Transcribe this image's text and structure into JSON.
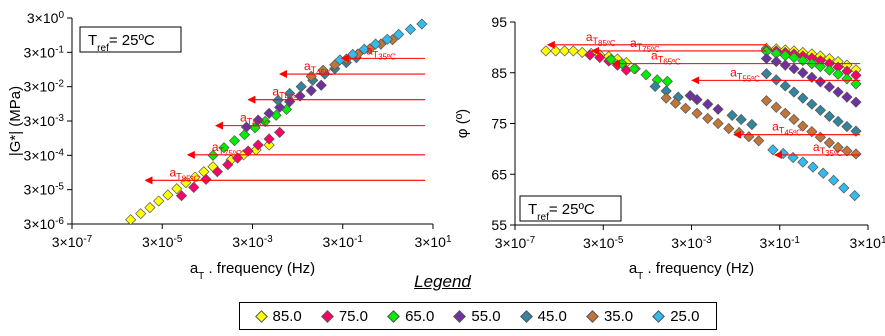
{
  "chart_data": [
    {
      "type": "scatter",
      "name": "modulus",
      "ylabel": "|G*| (MPa)",
      "xlabel_main": "a",
      "xlabel_sub": "T",
      "xlabel_rest": " . frequency (Hz)",
      "x_scale": "log",
      "y_scale": "log",
      "xlim": [
        3e-07,
        30
      ],
      "ylim": [
        3e-06,
        3
      ],
      "x_ticks": [
        "3×10-7",
        "3×10-5",
        "3×10-3",
        "3×10-1",
        "3×101"
      ],
      "y_ticks": [
        "3×10-6",
        "3×10-5",
        "3×10-4",
        "3×10-3",
        "3×10-2",
        "3×10-1",
        "3×100"
      ],
      "annotation": {
        "main": "T",
        "sub": "ref",
        "rest": "= 25ºC"
      },
      "shift_labels": [
        {
          "main": "a",
          "sub": "T",
          "subsub": "35ºC",
          "from_x": 20,
          "to_x": 0.26,
          "y": 0.2
        },
        {
          "main": "a",
          "sub": "T",
          "subsub": "45ºC",
          "from_x": 20,
          "to_x": 0.011,
          "y": 0.07
        },
        {
          "main": "a",
          "sub": "T",
          "subsub": "55ºC",
          "from_x": 20,
          "to_x": 0.0022,
          "y": 0.0125
        },
        {
          "main": "a",
          "sub": "T",
          "subsub": "65ºC",
          "from_x": 20,
          "to_x": 0.00042,
          "y": 0.0022
        },
        {
          "main": "a",
          "sub": "T",
          "subsub": "75ºC",
          "from_x": 20,
          "to_x": 0.0001,
          "y": 0.00031
        },
        {
          "main": "a",
          "sub": "T",
          "subsub": "85ºC",
          "from_x": 20,
          "to_x": 1.15e-05,
          "y": 5.6e-05
        }
      ],
      "series": [
        {
          "name": "85.0",
          "color": "#ffff00",
          "x": [
            6e-06,
            1e-05,
            1.6e-05,
            2.5e-05,
            4e-05,
            6.3e-05,
            0.0001,
            0.00016,
            0.00025,
            0.0004,
            0.001,
            0.0019,
            0.0036,
            0.007
          ],
          "y": [
            4e-06,
            6e-06,
            9e-06,
            1.4e-05,
            2.1e-05,
            3.2e-05,
            4.8e-05,
            7e-05,
            0.0001,
            0.00014,
            0.00022,
            0.00031,
            0.00043,
            0.0006
          ]
        },
        {
          "name": "75.0",
          "color": "#ff0066",
          "x": [
            8e-05,
            0.00015,
            0.00028,
            0.0005,
            0.00085,
            0.0014,
            0.0024,
            0.004,
            0.007,
            0.012
          ],
          "y": [
            2e-05,
            3.5e-05,
            6e-05,
            0.0001,
            0.00016,
            0.00025,
            0.0004,
            0.0006,
            0.0009,
            0.0014
          ]
        },
        {
          "name": "65.0",
          "color": "#00ee00",
          "x": [
            0.0004,
            0.0007,
            0.0012,
            0.002,
            0.0034,
            0.0057,
            0.01,
            0.017
          ],
          "y": [
            0.0003,
            0.0005,
            0.0008,
            0.0012,
            0.0019,
            0.0029,
            0.0044,
            0.0065
          ]
        },
        {
          "name": "55.0",
          "color": "#7030a0",
          "x": [
            0.0022,
            0.004,
            0.007,
            0.012,
            0.02,
            0.034,
            0.06,
            0.1
          ],
          "y": [
            0.002,
            0.0032,
            0.005,
            0.0075,
            0.011,
            0.016,
            0.023,
            0.033
          ]
        },
        {
          "name": "45.0",
          "color": "#31859c",
          "x": [
            0.011,
            0.02,
            0.036,
            0.065,
            0.12,
            0.2,
            0.36,
            0.6
          ],
          "y": [
            0.012,
            0.019,
            0.03,
            0.046,
            0.07,
            0.1,
            0.15,
            0.21
          ]
        },
        {
          "name": "35.0",
          "color": "#c0753a",
          "x": [
            0.06,
            0.11,
            0.2,
            0.36,
            0.65,
            1.2,
            2.1,
            3.8
          ],
          "y": [
            0.06,
            0.09,
            0.13,
            0.19,
            0.27,
            0.38,
            0.52,
            0.7
          ]
        },
        {
          "name": "25.0",
          "color": "#33bbee",
          "x": [
            0.26,
            0.5,
            0.9,
            1.6,
            2.9,
            5.2,
            9.5,
            17
          ],
          "y": [
            0.18,
            0.26,
            0.37,
            0.52,
            0.72,
            1.0,
            1.4,
            2.0
          ]
        }
      ]
    },
    {
      "type": "scatter",
      "name": "phase",
      "ylabel": "φ (º)",
      "xlabel_main": "a",
      "xlabel_sub": "T",
      "xlabel_rest": " . frequency (Hz)",
      "x_scale": "log",
      "y_scale": "linear",
      "xlim": [
        3e-07,
        30
      ],
      "ylim": [
        55,
        95
      ],
      "x_ticks": [
        "3×10-7",
        "3×10-5",
        "3×10-3",
        "3×10-1",
        "3×101"
      ],
      "y_ticks": [
        "55",
        "65",
        "75",
        "85",
        "95"
      ],
      "y_tick_values": [
        55,
        65,
        75,
        85,
        95
      ],
      "annotation": {
        "main": "T",
        "sub": "ref",
        "rest": "= 25ºC"
      },
      "shift_labels": [
        {
          "main": "a",
          "sub": "T",
          "subsub": "85ºC",
          "from_x": 0.15,
          "to_x": 1.5e-06,
          "y": 90.5
        },
        {
          "main": "a",
          "sub": "T",
          "subsub": "75ºC",
          "from_x": 0.15,
          "to_x": 1.5e-05,
          "y": 89.3
        },
        {
          "main": "a",
          "sub": "T",
          "subsub": "65ºC",
          "from_x": 20,
          "to_x": 4.5e-05,
          "y": 86.8
        },
        {
          "main": "a",
          "sub": "T",
          "subsub": "55ºC",
          "from_x": 20,
          "to_x": 0.0028,
          "y": 83.5
        },
        {
          "main": "a",
          "sub": "T",
          "subsub": "45ºC",
          "from_x": 20,
          "to_x": 0.025,
          "y": 72.8
        },
        {
          "main": "a",
          "sub": "T",
          "subsub": "35ºC",
          "from_x": 20,
          "to_x": 0.21,
          "y": 68.8
        }
      ],
      "series": [
        {
          "name": "85.0",
          "color": "#ffff00",
          "x": [
            1.5e-06,
            2.5e-06,
            4e-06,
            6.3e-06,
            1e-05,
            1.6e-05,
            2.5e-05,
            4e-05,
            6.3e-05,
            0.0001,
            0.00016,
            0.15,
            0.25,
            0.4,
            0.63,
            1,
            1.6,
            2.5,
            4,
            6.3,
            10,
            16
          ],
          "y": [
            89.3,
            89.3,
            89.3,
            89.3,
            89,
            88.8,
            88.5,
            88.2,
            87.7,
            87,
            85.8,
            89.8,
            89.7,
            89.5,
            89.3,
            89,
            88.7,
            88.3,
            87.8,
            87.2,
            86.5,
            85.6
          ]
        },
        {
          "name": "75.0",
          "color": "#ff0066",
          "x": [
            1.5e-05,
            2.5e-05,
            4e-05,
            6.3e-05,
            0.0001,
            0.15,
            0.25,
            0.4,
            0.63,
            1,
            1.6,
            2.5,
            4,
            6.3,
            10,
            16
          ],
          "y": [
            88.5,
            88,
            87.3,
            86.5,
            85.5,
            89.5,
            89.3,
            89,
            88.7,
            88.3,
            87.9,
            87.4,
            86.8,
            86.1,
            85.3,
            84.5
          ]
        },
        {
          "name": "65.0",
          "color": "#00ee00",
          "x": [
            4.5e-05,
            8e-05,
            0.00015,
            0.00028,
            0.0005,
            0.00085,
            0.15,
            0.25,
            0.4,
            0.63,
            1,
            1.6,
            2.5,
            4,
            6.3,
            10,
            16
          ],
          "y": [
            87.6,
            86.8,
            85.8,
            84.6,
            83.6,
            83.3,
            89.2,
            88.8,
            88.4,
            88,
            87.4,
            86.8,
            86.2,
            85.5,
            84.7,
            83.8,
            82.8
          ]
        },
        {
          "name": "55.0",
          "color": "#7030a0",
          "x": [
            0.0028,
            0.004,
            0.007,
            0.012,
            0.15,
            0.25,
            0.4,
            0.63,
            1,
            1.6,
            2.5,
            4,
            6.3,
            10,
            16
          ],
          "y": [
            80.5,
            79.7,
            78.8,
            77.8,
            87.8,
            87.2,
            86.5,
            85.8,
            85,
            84.1,
            83.2,
            82.2,
            81.2,
            80.2,
            79.2
          ]
        },
        {
          "name": "45.0",
          "color": "#31859c",
          "x": [
            0.00045,
            0.0008,
            0.0015,
            0.025,
            0.04,
            0.07,
            0.15,
            0.25,
            0.4,
            0.63,
            1,
            1.6,
            2.5,
            4,
            6.3,
            10,
            16
          ],
          "y": [
            82.3,
            81.4,
            80.2,
            76.6,
            75.8,
            74.8,
            84.8,
            83.6,
            82.4,
            81.2,
            80,
            78.8,
            77.6,
            76.4,
            75.4,
            74.4,
            73.5
          ]
        },
        {
          "name": "35.0",
          "color": "#c0753a",
          "x": [
            0.0008,
            0.0013,
            0.0022,
            0.004,
            0.007,
            0.012,
            0.021,
            0.036,
            0.06,
            0.1,
            0.15,
            0.25,
            0.4,
            0.63,
            1,
            1.6,
            2.5,
            4,
            6.3,
            10,
            16
          ],
          "y": [
            80,
            79,
            78,
            77,
            76,
            75,
            74,
            73.2,
            72.4,
            71.6,
            79.5,
            78.2,
            77,
            75.8,
            74.5,
            73.4,
            72.3,
            71.2,
            70.3,
            69.6,
            69
          ]
        },
        {
          "name": "25.0",
          "color": "#33bbee",
          "x": [
            0.21,
            0.36,
            0.6,
            1,
            1.7,
            2.9,
            5,
            8.5,
            15
          ],
          "y": [
            69.8,
            69.1,
            68.3,
            67.4,
            66.4,
            65.2,
            63.8,
            62.3,
            60.8
          ]
        }
      ]
    }
  ],
  "legend": {
    "title": "Legend",
    "entries": [
      {
        "label": "85.0",
        "color": "#ffff00"
      },
      {
        "label": "75.0",
        "color": "#ff0066"
      },
      {
        "label": "65.0",
        "color": "#00ee00"
      },
      {
        "label": "55.0",
        "color": "#7030a0"
      },
      {
        "label": "45.0",
        "color": "#31859c"
      },
      {
        "label": "35.0",
        "color": "#c0753a"
      },
      {
        "label": "25.0",
        "color": "#33bbee"
      }
    ]
  },
  "colors": {
    "arrow": "#ff0000",
    "label": "#ff0000",
    "axis": "#000000",
    "marker_edge": "#555555"
  }
}
